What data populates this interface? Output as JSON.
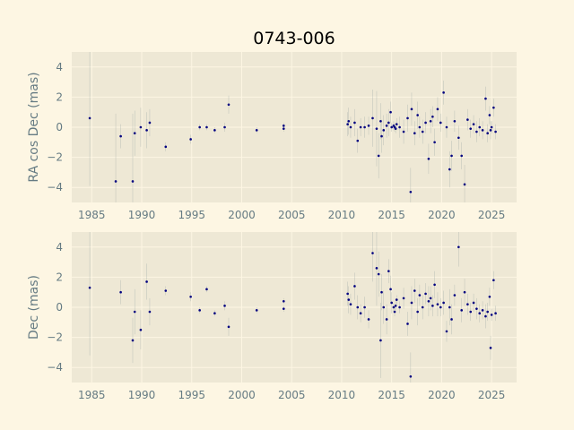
{
  "colors": {
    "figure_background": "#fdf6e3",
    "plot_background": "#eee8d5",
    "grid": "#fdf6e3",
    "tick_text": "#657b83",
    "point": "#000080",
    "errorbar": "#93a1a1"
  },
  "chart_data": [
    {
      "type": "scatter",
      "title": "0743-006",
      "xlabel": "",
      "ylabel": "RA cos Dec (mas)",
      "xlim": [
        1983,
        2027.5
      ],
      "ylim": [
        -5,
        5
      ],
      "xticks": [
        1985,
        1990,
        1995,
        2000,
        2005,
        2010,
        2015,
        2020,
        2025
      ],
      "yticks": [
        -4,
        -2,
        0,
        2,
        4
      ],
      "grid": true,
      "series": [
        {
          "x": [
            1984.8,
            1987.4,
            1987.9,
            1989.1,
            1989.3,
            1989.9,
            1990.5,
            1990.8,
            1992.4,
            1994.9,
            1995.8,
            1996.5,
            1997.3,
            1998.3,
            1998.7,
            2001.5,
            2004.2,
            2004.2,
            2010.6,
            2010.7,
            2010.9,
            2011.3,
            2011.6,
            2011.9,
            2012.3,
            2012.7,
            2013.1,
            2013.5,
            2013.7,
            2013.9,
            2014.0,
            2014.2,
            2014.5,
            2014.7,
            2014.9,
            2015.0,
            2015.2,
            2015.3,
            2015.4,
            2015.5,
            2015.8,
            2016.2,
            2016.6,
            2016.9,
            2017.0,
            2017.3,
            2017.6,
            2017.8,
            2018.1,
            2018.4,
            2018.7,
            2018.9,
            2019.1,
            2019.3,
            2019.6,
            2019.9,
            2020.2,
            2020.5,
            2020.8,
            2021.0,
            2021.3,
            2021.7,
            2022.0,
            2022.3,
            2022.6,
            2022.9,
            2023.2,
            2023.5,
            2023.8,
            2024.1,
            2024.4,
            2024.6,
            2024.8,
            2024.9,
            2025.0,
            2025.2,
            2025.4
          ],
          "y": [
            0.6,
            -3.6,
            -0.6,
            -3.6,
            -0.4,
            0.0,
            -0.2,
            0.3,
            -1.3,
            -0.8,
            0.0,
            0.0,
            -0.2,
            0.0,
            1.5,
            -0.2,
            0.1,
            -0.1,
            0.2,
            0.4,
            0.0,
            0.3,
            -0.9,
            0.0,
            0.0,
            0.1,
            0.6,
            -0.1,
            -1.9,
            0.4,
            -0.6,
            -0.2,
            0.1,
            0.3,
            1.0,
            0.0,
            0.1,
            0.0,
            -0.1,
            0.2,
            0.0,
            -0.3,
            0.6,
            -4.3,
            1.2,
            -0.4,
            0.8,
            0.0,
            -0.3,
            0.3,
            -2.1,
            0.4,
            0.7,
            -1.0,
            1.2,
            0.3,
            2.3,
            0.0,
            -2.8,
            -1.9,
            0.4,
            -0.7,
            -1.9,
            -3.8,
            0.5,
            -0.1,
            0.2,
            -0.3,
            0.0,
            -0.2,
            1.9,
            -0.4,
            0.8,
            -0.2,
            0.0,
            1.3,
            -0.3
          ],
          "yerr": [
            4.5,
            4.5,
            0.8,
            4.5,
            1.5,
            1.3,
            1.2,
            0.9,
            0.3,
            0.3,
            0.2,
            0.2,
            0.2,
            0.3,
            0.6,
            0.2,
            0.2,
            0.2,
            0.8,
            0.9,
            0.7,
            0.9,
            0.8,
            0.6,
            0.7,
            0.6,
            1.9,
            2.5,
            1.5,
            1.2,
            1.1,
            1.0,
            0.8,
            0.9,
            0.7,
            0.3,
            0.3,
            0.3,
            0.3,
            0.4,
            0.7,
            0.8,
            0.9,
            1.6,
            1.1,
            0.8,
            0.9,
            0.7,
            0.8,
            0.7,
            1.0,
            0.8,
            0.7,
            0.9,
            0.8,
            0.6,
            0.8,
            0.7,
            1.2,
            1.0,
            0.7,
            0.8,
            0.9,
            1.3,
            0.7,
            0.6,
            0.6,
            0.7,
            0.6,
            0.6,
            0.8,
            0.6,
            0.6,
            0.6,
            0.4,
            0.6,
            0.5
          ]
        }
      ]
    },
    {
      "type": "scatter",
      "title": "",
      "xlabel": "",
      "ylabel": "Dec (mas)",
      "xlim": [
        1983,
        2027.5
      ],
      "ylim": [
        -5,
        5
      ],
      "xticks": [
        1985,
        1990,
        1995,
        2000,
        2005,
        2010,
        2015,
        2020,
        2025
      ],
      "yticks": [
        -4,
        -2,
        0,
        2,
        4
      ],
      "grid": true,
      "series": [
        {
          "x": [
            1984.8,
            1987.9,
            1989.1,
            1989.3,
            1989.9,
            1990.5,
            1990.8,
            1992.4,
            1994.9,
            1995.8,
            1996.5,
            1997.3,
            1998.3,
            1998.7,
            2001.5,
            2004.2,
            2004.2,
            2010.6,
            2010.7,
            2010.9,
            2011.3,
            2011.6,
            2011.9,
            2012.3,
            2012.7,
            2013.1,
            2013.5,
            2013.7,
            2013.9,
            2014.0,
            2014.2,
            2014.5,
            2014.7,
            2014.9,
            2015.0,
            2015.2,
            2015.3,
            2015.4,
            2015.5,
            2015.8,
            2016.2,
            2016.6,
            2016.9,
            2017.0,
            2017.3,
            2017.6,
            2017.8,
            2018.1,
            2018.4,
            2018.7,
            2018.9,
            2019.1,
            2019.3,
            2019.6,
            2019.9,
            2020.2,
            2020.5,
            2020.8,
            2021.0,
            2021.3,
            2021.7,
            2022.0,
            2022.3,
            2022.6,
            2022.9,
            2023.2,
            2023.5,
            2023.8,
            2024.1,
            2024.4,
            2024.6,
            2024.8,
            2024.9,
            2025.0,
            2025.2,
            2025.4
          ],
          "y": [
            1.3,
            1.0,
            -2.2,
            -0.3,
            -1.5,
            1.7,
            -0.3,
            1.1,
            0.7,
            -0.2,
            1.2,
            -0.4,
            0.1,
            -1.3,
            -0.2,
            0.4,
            -0.1,
            0.9,
            0.5,
            0.2,
            1.4,
            0.0,
            -0.4,
            0.0,
            -0.8,
            3.6,
            2.6,
            2.2,
            -2.2,
            1.0,
            0.0,
            -0.8,
            2.4,
            1.2,
            0.3,
            0.0,
            -0.3,
            0.1,
            0.5,
            0.0,
            0.6,
            -1.1,
            -4.6,
            0.3,
            1.1,
            -0.3,
            0.8,
            0.0,
            0.9,
            0.4,
            0.6,
            0.1,
            1.5,
            0.2,
            0.0,
            0.3,
            -1.6,
            0.0,
            -0.8,
            0.8,
            4.0,
            -0.2,
            1.0,
            0.2,
            -0.3,
            0.3,
            -0.1,
            -0.4,
            -0.2,
            -0.6,
            -0.3,
            0.7,
            -2.7,
            -0.5,
            1.8,
            -0.4
          ],
          "yerr": [
            4.5,
            0.8,
            1.5,
            1.5,
            1.3,
            1.2,
            0.9,
            0.3,
            0.3,
            0.2,
            0.2,
            0.2,
            0.3,
            0.6,
            0.2,
            0.2,
            0.2,
            0.8,
            0.9,
            0.7,
            0.9,
            0.8,
            0.6,
            0.7,
            0.6,
            1.9,
            2.5,
            1.5,
            2.5,
            1.2,
            1.1,
            1.0,
            0.8,
            0.9,
            0.7,
            0.3,
            0.3,
            0.3,
            0.3,
            0.4,
            0.7,
            0.8,
            1.6,
            1.1,
            0.8,
            0.9,
            0.7,
            0.8,
            0.7,
            1.0,
            0.8,
            0.7,
            0.9,
            0.8,
            0.6,
            0.8,
            0.7,
            1.2,
            1.0,
            0.7,
            1.3,
            0.8,
            0.9,
            0.7,
            0.6,
            0.6,
            0.7,
            0.6,
            0.6,
            0.8,
            0.6,
            0.6,
            0.8,
            0.4,
            0.6,
            0.5
          ]
        }
      ]
    }
  ]
}
